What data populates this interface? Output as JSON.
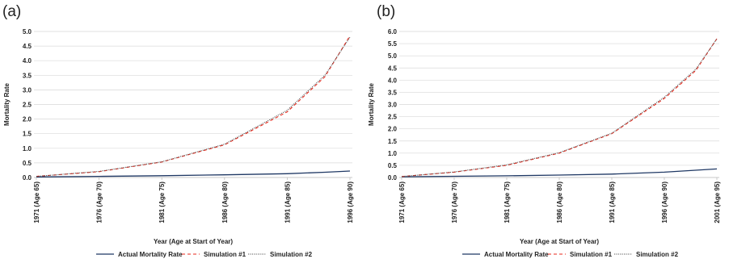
{
  "chart_data": [
    {
      "panel_label": "(a)",
      "type": "line",
      "xlabel": "Year (Age at Start of Year)",
      "ylabel": "Mortality Rate",
      "ylim": [
        0,
        5.0
      ],
      "yticks": [
        "0.0",
        "0.5",
        "1.0",
        "1.5",
        "2.0",
        "2.5",
        "3.0",
        "3.5",
        "4.0",
        "4.5",
        "5.0"
      ],
      "x_tick_labels": [
        "1971 (Age 65)",
        "1976 (Age 70)",
        "1981 (Age 75)",
        "1986 (Age 80)",
        "1991 (Age 85)",
        "1996 (Age 90)"
      ],
      "x_start": 1971,
      "x_end": 1996,
      "grid": "horizontal",
      "legend_position": "bottom",
      "colors": {
        "actual": "#1f3864",
        "sim1": "#e8291c",
        "sim2": "#555555"
      },
      "series": [
        {
          "name": "Actual Mortality Rate",
          "x": [
            1971,
            1976,
            1981,
            1986,
            1991,
            1994,
            1996
          ],
          "values": [
            0.02,
            0.04,
            0.06,
            0.09,
            0.13,
            0.18,
            0.22
          ]
        },
        {
          "name": "Simulation #1",
          "x": [
            1971,
            1976,
            1981,
            1986,
            1991,
            1994,
            1996
          ],
          "values": [
            0.04,
            0.2,
            0.53,
            1.12,
            2.25,
            3.45,
            4.85
          ]
        },
        {
          "name": "Simulation #2",
          "x": [
            1971,
            1976,
            1981,
            1986,
            1991,
            1994,
            1996
          ],
          "values": [
            0.04,
            0.21,
            0.54,
            1.14,
            2.3,
            3.5,
            4.8
          ]
        }
      ]
    },
    {
      "panel_label": "(b)",
      "type": "line",
      "xlabel": "Year (Age at Start of Year)",
      "ylabel": "Mortality Rate",
      "ylim": [
        0,
        6.0
      ],
      "yticks": [
        "0.0",
        "0.5",
        "1.0",
        "1.5",
        "2.0",
        "2.5",
        "3.0",
        "3.5",
        "4.0",
        "4.5",
        "5.0",
        "5.5",
        "6.0"
      ],
      "x_tick_labels": [
        "1971 (Age 65)",
        "1976 (Age 70)",
        "1981 (Age 75)",
        "1986 (Age 80)",
        "1991 (Age 85)",
        "1996 (Age 90)",
        "2001 (Age 95)"
      ],
      "x_start": 1971,
      "x_end": 2001,
      "grid": "horizontal",
      "legend_position": "bottom",
      "colors": {
        "actual": "#1f3864",
        "sim1": "#e8291c",
        "sim2": "#555555"
      },
      "series": [
        {
          "name": "Actual Mortality Rate",
          "x": [
            1971,
            1976,
            1981,
            1986,
            1991,
            1996,
            2001
          ],
          "values": [
            0.03,
            0.05,
            0.07,
            0.1,
            0.14,
            0.22,
            0.35
          ]
        },
        {
          "name": "Simulation #1",
          "x": [
            1971,
            1976,
            1981,
            1986,
            1991,
            1996,
            1999,
            2001
          ],
          "values": [
            0.04,
            0.22,
            0.5,
            1.0,
            1.8,
            3.25,
            4.4,
            5.7
          ]
        },
        {
          "name": "Simulation #2",
          "x": [
            1971,
            1976,
            1981,
            1986,
            1991,
            1996,
            1999,
            2001
          ],
          "values": [
            0.04,
            0.23,
            0.52,
            1.02,
            1.82,
            3.3,
            4.45,
            5.7
          ]
        }
      ]
    }
  ]
}
